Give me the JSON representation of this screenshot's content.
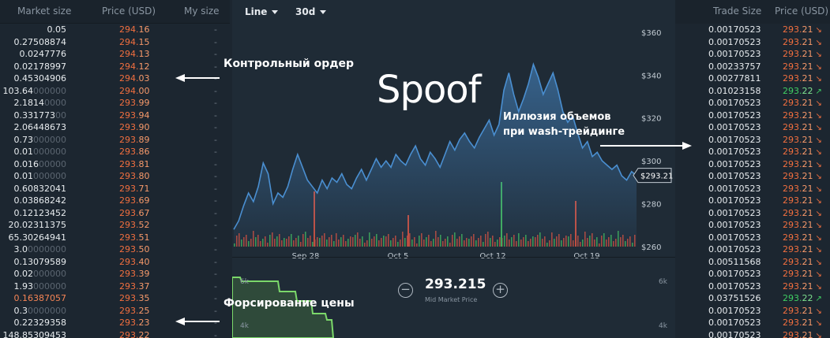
{
  "orderbook": {
    "headers": {
      "size": "Market size",
      "price": "Price (USD)",
      "mine": "My size"
    },
    "rows": [
      {
        "size_main": "0.05",
        "size_dim": "",
        "price_hi": "294.",
        "price_lo": "16",
        "mine": "-"
      },
      {
        "size_main": "0.27508874",
        "size_dim": "",
        "price_hi": "294.",
        "price_lo": "15",
        "mine": "-"
      },
      {
        "size_main": "0.0247776",
        "size_dim": "",
        "price_hi": "294.",
        "price_lo": "13",
        "mine": "-"
      },
      {
        "size_main": "0.02178997",
        "size_dim": "",
        "price_hi": "294.",
        "price_lo": "12",
        "mine": "-"
      },
      {
        "size_main": "0.45304906",
        "size_dim": "",
        "price_hi": "294.",
        "price_lo": "03",
        "mine": "-"
      },
      {
        "size_main": "103.64",
        "size_dim": "000000",
        "price_hi": "294.",
        "price_lo": "00",
        "mine": "-"
      },
      {
        "size_main": "2.1814",
        "size_dim": "0000",
        "price_hi": "293.",
        "price_lo": "99",
        "mine": "-"
      },
      {
        "size_main": "0.331773",
        "size_dim": "00",
        "price_hi": "293.",
        "price_lo": "94",
        "mine": "-"
      },
      {
        "size_main": "2.06448673",
        "size_dim": "",
        "price_hi": "293.",
        "price_lo": "90",
        "mine": "-"
      },
      {
        "size_main": "0.73",
        "size_dim": "000000",
        "price_hi": "293.",
        "price_lo": "89",
        "mine": "-"
      },
      {
        "size_main": "0.01",
        "size_dim": "000000",
        "price_hi": "293.",
        "price_lo": "86",
        "mine": "-"
      },
      {
        "size_main": "0.016",
        "size_dim": "00000",
        "price_hi": "293.",
        "price_lo": "81",
        "mine": "-"
      },
      {
        "size_main": "0.01",
        "size_dim": "000000",
        "price_hi": "293.",
        "price_lo": "80",
        "mine": "-"
      },
      {
        "size_main": "0.60832041",
        "size_dim": "",
        "price_hi": "293.",
        "price_lo": "71",
        "mine": "-"
      },
      {
        "size_main": "0.03868242",
        "size_dim": "",
        "price_hi": "293.",
        "price_lo": "69",
        "mine": "-"
      },
      {
        "size_main": "0.12123452",
        "size_dim": "",
        "price_hi": "293.",
        "price_lo": "67",
        "mine": "-"
      },
      {
        "size_main": "20.02311375",
        "size_dim": "",
        "price_hi": "293.",
        "price_lo": "52",
        "mine": "-"
      },
      {
        "size_main": "65.30264941",
        "size_dim": "",
        "price_hi": "293.",
        "price_lo": "51",
        "mine": "-"
      },
      {
        "size_main": "3.0",
        "size_dim": "0000000",
        "price_hi": "293.",
        "price_lo": "50",
        "mine": "-"
      },
      {
        "size_main": "0.13079589",
        "size_dim": "",
        "price_hi": "293.",
        "price_lo": "40",
        "mine": "-"
      },
      {
        "size_main": "0.02",
        "size_dim": "000000",
        "price_hi": "293.",
        "price_lo": "39",
        "mine": "-"
      },
      {
        "size_main": "1.93",
        "size_dim": "000000",
        "price_hi": "293.",
        "price_lo": "37",
        "mine": "-"
      },
      {
        "size_main": "0.16387057",
        "size_dim": "",
        "price_hi": "293.",
        "price_lo": "35",
        "mine": "-",
        "hl": true
      },
      {
        "size_main": "0.3",
        "size_dim": "0000000",
        "price_hi": "293.",
        "price_lo": "25",
        "mine": "-"
      },
      {
        "size_main": "0.22329358",
        "size_dim": "",
        "price_hi": "293.",
        "price_lo": "23",
        "mine": "-"
      },
      {
        "size_main": "148.85309453",
        "size_dim": "",
        "price_hi": "293.",
        "price_lo": "22",
        "mine": "-"
      }
    ]
  },
  "toolbar": {
    "chart_type": "Line",
    "range": "30d"
  },
  "chart_data": {
    "type": "line",
    "title": "",
    "xlabel": "",
    "ylabel": "",
    "x_ticks": [
      "Sep 28",
      "Oct 5",
      "Oct 12",
      "Oct 19"
    ],
    "y_ticks": [
      "$360",
      "$340",
      "$320",
      "$300",
      "$280",
      "$260"
    ],
    "ylim": [
      260,
      364
    ],
    "last_price_label": "$293.21",
    "price_series": [
      268,
      272,
      279,
      285,
      281,
      288,
      299,
      294,
      280,
      285,
      283,
      288,
      296,
      303,
      297,
      291,
      288,
      285,
      291,
      287,
      292,
      290,
      294,
      289,
      287,
      292,
      296,
      291,
      296,
      301,
      297,
      300,
      297,
      303,
      300,
      298,
      303,
      307,
      301,
      298,
      304,
      301,
      297,
      303,
      309,
      305,
      310,
      313,
      309,
      306,
      311,
      315,
      319,
      312,
      317,
      333,
      341,
      331,
      323,
      329,
      336,
      345,
      339,
      331,
      336,
      341,
      333,
      323,
      318,
      321,
      313,
      306,
      309,
      302,
      304,
      300,
      298,
      296,
      298,
      293,
      291,
      295,
      293
    ],
    "depth_labels": [
      "6k",
      "4k"
    ]
  },
  "mid_market": {
    "value": "293.215",
    "label": "Mid Market Price",
    "minus": "−",
    "plus": "+"
  },
  "trades": {
    "headers": {
      "size": "Trade Size",
      "price": "Price (USD)"
    },
    "rows": [
      {
        "size": "0.00170523",
        "price_hi": "293.",
        "price_lo": "21",
        "dir": "down"
      },
      {
        "size": "0.00170523",
        "price_hi": "293.",
        "price_lo": "21",
        "dir": "down"
      },
      {
        "size": "0.00170523",
        "price_hi": "293.",
        "price_lo": "21",
        "dir": "down"
      },
      {
        "size": "0.00233757",
        "price_hi": "293.",
        "price_lo": "21",
        "dir": "down"
      },
      {
        "size": "0.00277811",
        "price_hi": "293.",
        "price_lo": "21",
        "dir": "down"
      },
      {
        "size": "0.01023158",
        "price_hi": "293.",
        "price_lo": "22",
        "dir": "up"
      },
      {
        "size": "0.00170523",
        "price_hi": "293.",
        "price_lo": "21",
        "dir": "down"
      },
      {
        "size": "0.00170523",
        "price_hi": "293.",
        "price_lo": "21",
        "dir": "down"
      },
      {
        "size": "0.00170523",
        "price_hi": "293.",
        "price_lo": "21",
        "dir": "down"
      },
      {
        "size": "0.00170523",
        "price_hi": "293.",
        "price_lo": "21",
        "dir": "down"
      },
      {
        "size": "0.00170523",
        "price_hi": "293.",
        "price_lo": "21",
        "dir": "down"
      },
      {
        "size": "0.00170523",
        "price_hi": "293.",
        "price_lo": "21",
        "dir": "down"
      },
      {
        "size": "0.00170523",
        "price_hi": "293.",
        "price_lo": "21",
        "dir": "down"
      },
      {
        "size": "0.00170523",
        "price_hi": "293.",
        "price_lo": "21",
        "dir": "down"
      },
      {
        "size": "0.00170523",
        "price_hi": "293.",
        "price_lo": "21",
        "dir": "down"
      },
      {
        "size": "0.00170523",
        "price_hi": "293.",
        "price_lo": "21",
        "dir": "down"
      },
      {
        "size": "0.00170523",
        "price_hi": "293.",
        "price_lo": "21",
        "dir": "down"
      },
      {
        "size": "0.00170523",
        "price_hi": "293.",
        "price_lo": "21",
        "dir": "down"
      },
      {
        "size": "0.00170523",
        "price_hi": "293.",
        "price_lo": "21",
        "dir": "down"
      },
      {
        "size": "0.00511568",
        "price_hi": "293.",
        "price_lo": "21",
        "dir": "down"
      },
      {
        "size": "0.00170523",
        "price_hi": "293.",
        "price_lo": "21",
        "dir": "down"
      },
      {
        "size": "0.00170523",
        "price_hi": "293.",
        "price_lo": "21",
        "dir": "down"
      },
      {
        "size": "0.03751526",
        "price_hi": "293.",
        "price_lo": "22",
        "dir": "up"
      },
      {
        "size": "0.00170523",
        "price_hi": "293.",
        "price_lo": "21",
        "dir": "down"
      },
      {
        "size": "0.00170523",
        "price_hi": "293.",
        "price_lo": "21",
        "dir": "down"
      },
      {
        "size": "0.00170523",
        "price_hi": "293.",
        "price_lo": "21",
        "dir": "down"
      }
    ]
  },
  "annotations": {
    "control_order": "Контрольный ордер",
    "spoof": "Spoof",
    "wash_line1": "Иллюзия объемов",
    "wash_line2": "при wash-трейдинге",
    "price_forcing": "Форсирование цены"
  },
  "colors": {
    "ask": "#f26f3f",
    "bid": "#3fce62",
    "line": "#4a8fd1",
    "depth": "#7bd86a",
    "bg": "#1c2630"
  }
}
